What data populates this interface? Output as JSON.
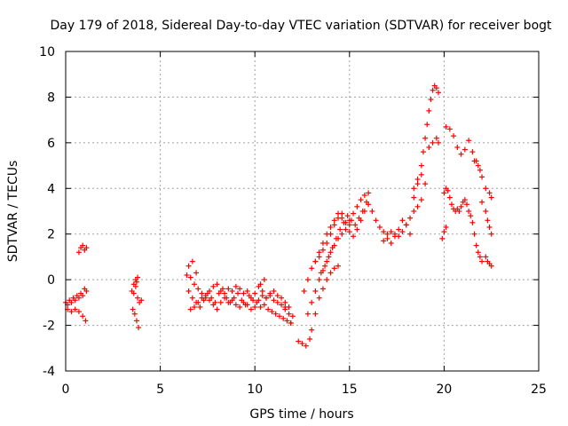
{
  "chart_data": {
    "type": "scatter",
    "title": "Day 179 of 2018, Sidereal Day-to-day VTEC variation (SDTVAR) for receiver bogt",
    "xlabel": "GPS time / hours",
    "ylabel": "SDTVAR / TECUs",
    "xlim": [
      0,
      25
    ],
    "ylim": [
      -4,
      10
    ],
    "xticks": [
      0,
      5,
      10,
      15,
      20,
      25
    ],
    "yticks": [
      -4,
      -2,
      0,
      2,
      4,
      6,
      8,
      10
    ],
    "grid": true,
    "marker": "+",
    "color": "#ff0000",
    "series": [
      {
        "name": "SDTVAR",
        "x": [
          0.0,
          0.2,
          0.4,
          0.6,
          0.8,
          1.0,
          0.1,
          0.3,
          0.5,
          0.7,
          0.9,
          1.1,
          0.1,
          0.3,
          0.5,
          0.7,
          0.9,
          1.05,
          0.7,
          0.8,
          0.9,
          1.0,
          1.1,
          3.5,
          3.6,
          3.7,
          3.8,
          3.9,
          4.0,
          3.55,
          3.65,
          3.75,
          3.85,
          3.6,
          3.7,
          3.75,
          3.8,
          6.4,
          6.6,
          6.8,
          7.0,
          7.2,
          7.4,
          7.6,
          7.8,
          8.0,
          8.2,
          8.4,
          8.6,
          8.8,
          9.0,
          9.2,
          9.4,
          9.6,
          9.8,
          10.0,
          10.2,
          10.4,
          10.6,
          10.8,
          11.0,
          11.2,
          11.4,
          11.6,
          11.8,
          12.0,
          6.5,
          6.7,
          6.9,
          7.1,
          7.3,
          7.5,
          7.7,
          7.9,
          8.1,
          8.3,
          8.5,
          8.7,
          8.9,
          9.1,
          9.3,
          9.5,
          9.7,
          9.9,
          10.1,
          10.3,
          10.5,
          10.7,
          10.9,
          11.1,
          11.3,
          11.5,
          11.7,
          11.9,
          6.6,
          6.8,
          7.0,
          7.2,
          7.4,
          7.6,
          7.8,
          8.0,
          8.2,
          8.4,
          8.6,
          8.8,
          9.0,
          9.2,
          9.4,
          9.6,
          9.8,
          10.0,
          10.2,
          10.4,
          10.6,
          10.8,
          11.0,
          11.2,
          11.4,
          11.6,
          11.8,
          6.5,
          6.7,
          6.9,
          10.3,
          10.5,
          11.6,
          11.9,
          12.3,
          12.5,
          12.7,
          12.9,
          13.0,
          13.2,
          13.4,
          13.6,
          13.8,
          14.0,
          14.2,
          14.4,
          12.8,
          13.0,
          13.2,
          13.4,
          13.6,
          13.8,
          14.0,
          14.2,
          14.4,
          14.6,
          14.8,
          15.0,
          12.6,
          12.8,
          13.0,
          13.2,
          13.4,
          13.6,
          13.8,
          14.0,
          14.2,
          14.4,
          14.6,
          14.8,
          15.0,
          15.2,
          15.4,
          15.6,
          15.8,
          16.0,
          13.5,
          13.7,
          13.9,
          14.1,
          14.3,
          14.5,
          14.7,
          14.9,
          15.1,
          15.3,
          15.5,
          15.7,
          15.9,
          13.2,
          13.4,
          13.6,
          13.8,
          14.0,
          14.2,
          14.4,
          14.6,
          14.8,
          15.0,
          15.2,
          15.4,
          15.6,
          15.8,
          16.0,
          16.2,
          16.4,
          16.6,
          16.8,
          17.0,
          17.2,
          17.4,
          17.6,
          17.8,
          18.0,
          18.2,
          18.4,
          18.6,
          18.8,
          16.8,
          17.0,
          17.2,
          17.4,
          17.6,
          17.8,
          18.0,
          18.2,
          18.4,
          18.6,
          18.8,
          18.9,
          19.0,
          19.1,
          19.2,
          19.3,
          19.4,
          19.5,
          19.6,
          19.7,
          18.4,
          18.6,
          18.8,
          19.0,
          19.2,
          19.4,
          19.6,
          19.7,
          20.0,
          20.1,
          20.2,
          20.3,
          20.4,
          20.5,
          20.6,
          20.7,
          20.8,
          20.9,
          21.0,
          21.1,
          21.2,
          21.3,
          21.4,
          21.5,
          21.6,
          21.7,
          21.8,
          21.9,
          22.0,
          20.1,
          20.3,
          20.5,
          20.7,
          20.9,
          21.1,
          21.3,
          21.5,
          21.7,
          21.9,
          21.6,
          21.8,
          22.0,
          22.2,
          22.4,
          22.5,
          22.0,
          22.2,
          22.3,
          22.4,
          22.5,
          22.2,
          22.3,
          22.4,
          22.5,
          19.9,
          20.0,
          20.1
        ],
        "y": [
          -1.0,
          -0.9,
          -0.8,
          -0.7,
          -0.6,
          -0.4,
          -1.1,
          -1.0,
          -0.9,
          -0.8,
          -0.7,
          -0.5,
          -1.3,
          -1.4,
          -1.3,
          -1.4,
          -1.6,
          -1.8,
          1.2,
          1.4,
          1.5,
          1.3,
          1.4,
          -0.5,
          -0.2,
          0.0,
          -0.8,
          -1.0,
          -0.9,
          -1.3,
          -1.5,
          -1.8,
          -2.1,
          -0.6,
          -0.3,
          -0.1,
          0.1,
          0.2,
          0.1,
          -0.2,
          -0.4,
          -0.6,
          -0.8,
          -0.5,
          -0.3,
          -0.2,
          -0.5,
          -0.6,
          -0.4,
          -0.5,
          -0.3,
          -0.4,
          -0.6,
          -0.5,
          -0.8,
          -0.6,
          -0.3,
          -0.5,
          -0.8,
          -0.7,
          -0.9,
          -1.0,
          -1.1,
          -1.3,
          -1.5,
          -1.6,
          -0.5,
          -0.8,
          -1.0,
          -1.2,
          -0.9,
          -0.6,
          -0.8,
          -1.0,
          -0.6,
          -0.4,
          -0.8,
          -1.0,
          -0.8,
          -0.6,
          -0.9,
          -1.1,
          -0.7,
          -0.9,
          -1.0,
          -1.2,
          -1.1,
          -1.3,
          -1.4,
          -1.5,
          -1.6,
          -1.7,
          -1.8,
          -1.9,
          -1.3,
          -1.2,
          -1.0,
          -0.8,
          -0.7,
          -0.9,
          -1.1,
          -1.3,
          -1.0,
          -0.8,
          -1.0,
          -0.9,
          -1.1,
          -1.2,
          -1.0,
          -1.1,
          -1.3,
          -1.2,
          -0.9,
          -0.7,
          -0.8,
          -0.6,
          -0.5,
          -0.7,
          -0.8,
          -1.0,
          -1.2,
          0.6,
          0.8,
          0.3,
          -0.2,
          0.0,
          -1.2,
          -1.9,
          -2.7,
          -2.8,
          -2.9,
          -2.6,
          -2.2,
          -1.5,
          -0.8,
          -0.4,
          0.0,
          0.3,
          0.5,
          0.6,
          -1.5,
          -1.0,
          -0.5,
          0.0,
          0.4,
          0.8,
          1.2,
          1.5,
          1.8,
          2.0,
          2.2,
          2.4,
          -0.5,
          0.0,
          0.5,
          0.8,
          1.2,
          1.6,
          2.0,
          2.3,
          2.6,
          2.9,
          2.7,
          2.5,
          2.6,
          2.9,
          3.2,
          3.5,
          3.7,
          3.8,
          0.3,
          0.6,
          1.0,
          1.4,
          1.8,
          2.2,
          2.5,
          2.8,
          2.6,
          2.4,
          2.7,
          3.0,
          3.4,
          0.8,
          1.0,
          1.3,
          1.6,
          2.0,
          2.4,
          2.7,
          2.9,
          2.5,
          2.1,
          1.9,
          2.2,
          2.6,
          3.0,
          3.3,
          3.0,
          2.6,
          2.3,
          2.1,
          2.0,
          2.1,
          2.0,
          1.9,
          2.1,
          2.4,
          2.7,
          3.0,
          3.2,
          3.5,
          1.7,
          1.8,
          1.6,
          1.9,
          2.2,
          2.6,
          2.4,
          2.0,
          4.0,
          4.4,
          5.0,
          5.6,
          6.2,
          6.8,
          7.4,
          7.9,
          8.3,
          8.5,
          8.4,
          8.2,
          3.6,
          4.2,
          4.6,
          4.2,
          5.8,
          6.0,
          6.2,
          6.0,
          3.8,
          4.0,
          3.9,
          3.6,
          3.3,
          3.1,
          3.0,
          3.1,
          3.0,
          3.2,
          3.4,
          3.5,
          3.3,
          3.0,
          2.8,
          2.5,
          2.0,
          1.5,
          1.2,
          1.0,
          0.8,
          6.7,
          6.6,
          6.3,
          5.8,
          5.5,
          5.7,
          6.1,
          5.6,
          5.2,
          4.8,
          5.2,
          5.0,
          4.5,
          4.0,
          3.8,
          3.6,
          3.4,
          3.0,
          2.6,
          2.3,
          2.0,
          1.0,
          0.8,
          0.7,
          0.6,
          1.8,
          2.1,
          2.3
        ]
      }
    ]
  }
}
